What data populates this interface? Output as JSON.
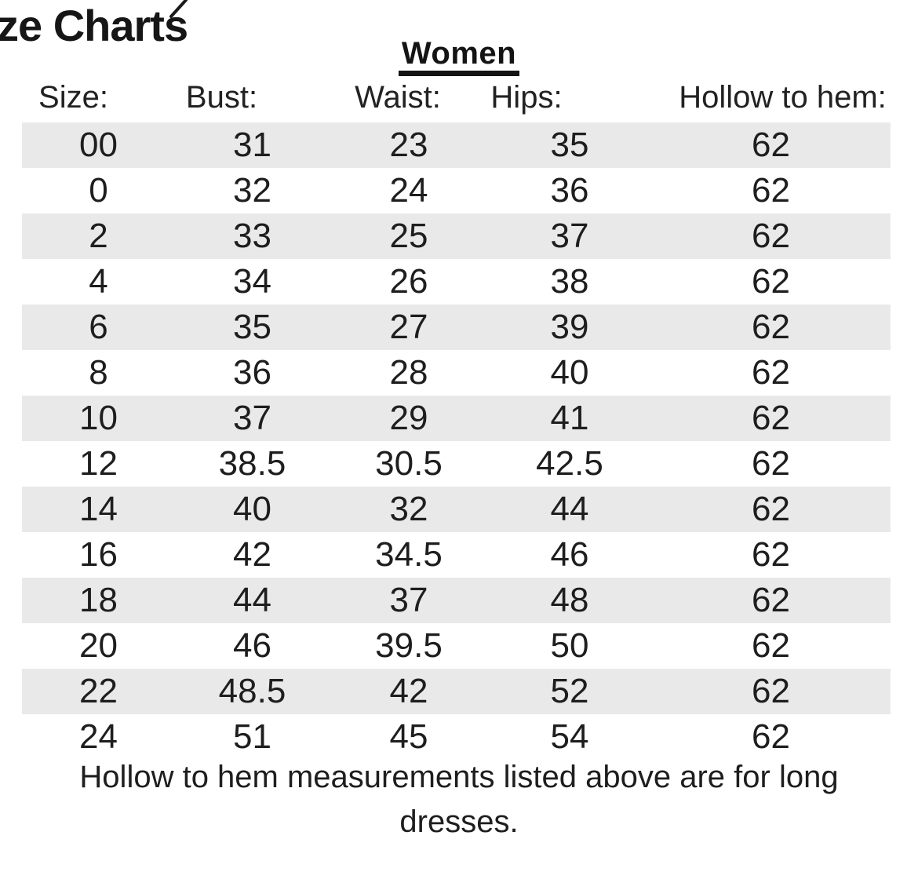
{
  "document": {
    "title_partial": "ze Charts"
  },
  "chart_data": {
    "type": "table",
    "title": "Women",
    "columns": [
      "Size:",
      "Bust:",
      "Waist:",
      "Hips:",
      "Hollow to hem:"
    ],
    "rows": [
      [
        "00",
        "31",
        "23",
        "35",
        "62"
      ],
      [
        "0",
        "32",
        "24",
        "36",
        "62"
      ],
      [
        "2",
        "33",
        "25",
        "37",
        "62"
      ],
      [
        "4",
        "34",
        "26",
        "38",
        "62"
      ],
      [
        "6",
        "35",
        "27",
        "39",
        "62"
      ],
      [
        "8",
        "36",
        "28",
        "40",
        "62"
      ],
      [
        "10",
        "37",
        "29",
        "41",
        "62"
      ],
      [
        "12",
        "38.5",
        "30.5",
        "42.5",
        "62"
      ],
      [
        "14",
        "40",
        "32",
        "44",
        "62"
      ],
      [
        "16",
        "42",
        "34.5",
        "46",
        "62"
      ],
      [
        "18",
        "44",
        "37",
        "48",
        "62"
      ],
      [
        "20",
        "46",
        "39.5",
        "50",
        "62"
      ],
      [
        "22",
        "48.5",
        "42",
        "52",
        "62"
      ],
      [
        "24",
        "51",
        "45",
        "54",
        "62"
      ]
    ],
    "notes": [
      "Hollow to hem measurements listed above are for long",
      "dresses."
    ],
    "stripe_color": "#e9e9e9",
    "text_color": "#1e1e1e",
    "layout": "striped rows, first row shaded, no grid lines"
  }
}
